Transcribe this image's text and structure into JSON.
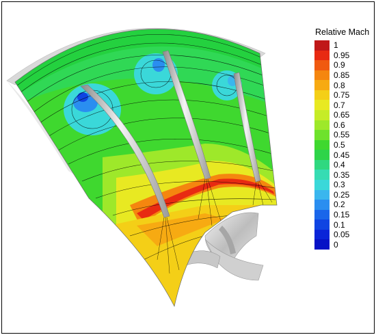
{
  "legend": {
    "title": "Relative Mach",
    "ticks": [
      "1",
      "0.95",
      "0.9",
      "0.85",
      "0.8",
      "0.75",
      "0.7",
      "0.65",
      "0.6",
      "0.55",
      "0.5",
      "0.45",
      "0.4",
      "0.35",
      "0.3",
      "0.25",
      "0.2",
      "0.15",
      "0.1",
      "0.05",
      "0"
    ],
    "colors": [
      "#c01818",
      "#e82a12",
      "#f05a10",
      "#f5860f",
      "#f7aa12",
      "#f4cf17",
      "#e8e922",
      "#c6ec27",
      "#9ee82a",
      "#6ee22c",
      "#3fd82f",
      "#2ed449",
      "#2fd880",
      "#36dcb3",
      "#3ad8d9",
      "#3ab6ee",
      "#2a8ef0",
      "#1a66ea",
      "#0f44e2",
      "#0a24d8",
      "#0612c6"
    ]
  },
  "figure": {
    "subject": "compressor blade passage relative Mach number contour",
    "blade_count": 3
  }
}
